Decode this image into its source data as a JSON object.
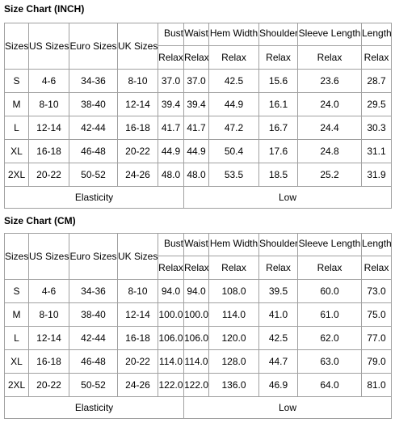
{
  "sections": [
    {
      "title": "Size Chart (INCH)",
      "table": {
        "size_headers": [
          "Sizes",
          "US Sizes",
          "Euro Sizes",
          "UK Sizes"
        ],
        "measure_headers": [
          "Bust",
          "Waist",
          "Hem Width",
          "Shoulder",
          "Sleeve Length",
          "Length"
        ],
        "fit_labels": [
          "Relax",
          "Relax",
          "Relax",
          "Relax",
          "Relax",
          "Relax"
        ],
        "rows": [
          [
            "S",
            "4-6",
            "34-36",
            "8-10",
            "37.0",
            "37.0",
            "42.5",
            "15.6",
            "23.6",
            "28.7"
          ],
          [
            "M",
            "8-10",
            "38-40",
            "12-14",
            "39.4",
            "39.4",
            "44.9",
            "16.1",
            "24.0",
            "29.5"
          ],
          [
            "L",
            "12-14",
            "42-44",
            "16-18",
            "41.7",
            "41.7",
            "47.2",
            "16.7",
            "24.4",
            "30.3"
          ],
          [
            "XL",
            "16-18",
            "46-48",
            "20-22",
            "44.9",
            "44.9",
            "50.4",
            "17.6",
            "24.8",
            "31.1"
          ],
          [
            "2XL",
            "20-22",
            "50-52",
            "24-26",
            "48.0",
            "48.0",
            "53.5",
            "18.5",
            "25.2",
            "31.9"
          ]
        ],
        "footer": [
          "Elasticity",
          "Low"
        ]
      }
    },
    {
      "title": "Size Chart (CM)",
      "table": {
        "size_headers": [
          "Sizes",
          "US Sizes",
          "Euro Sizes",
          "UK Sizes"
        ],
        "measure_headers": [
          "Bust",
          "Waist",
          "Hem Width",
          "Shoulder",
          "Sleeve Length",
          "Length"
        ],
        "fit_labels": [
          "Relax",
          "Relax",
          "Relax",
          "Relax",
          "Relax",
          "Relax"
        ],
        "rows": [
          [
            "S",
            "4-6",
            "34-36",
            "8-10",
            "94.0",
            "94.0",
            "108.0",
            "39.5",
            "60.0",
            "73.0"
          ],
          [
            "M",
            "8-10",
            "38-40",
            "12-14",
            "100.0",
            "100.0",
            "114.0",
            "41.0",
            "61.0",
            "75.0"
          ],
          [
            "L",
            "12-14",
            "42-44",
            "16-18",
            "106.0",
            "106.0",
            "120.0",
            "42.5",
            "62.0",
            "77.0"
          ],
          [
            "XL",
            "16-18",
            "46-48",
            "20-22",
            "114.0",
            "114.0",
            "128.0",
            "44.7",
            "63.0",
            "79.0"
          ],
          [
            "2XL",
            "20-22",
            "50-52",
            "24-26",
            "122.0",
            "122.0",
            "136.0",
            "46.9",
            "64.0",
            "81.0"
          ]
        ],
        "footer": [
          "Elasticity",
          "Low"
        ]
      }
    }
  ]
}
